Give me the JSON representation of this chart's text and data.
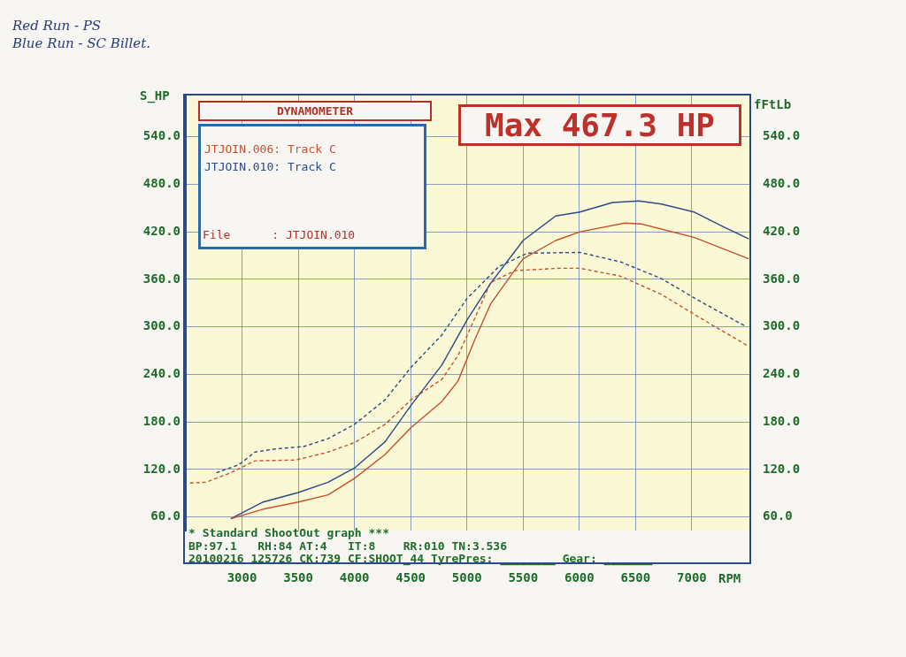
{
  "chart_data": {
    "type": "line",
    "title": "DYNAMOMETER",
    "xlabel": "RPM",
    "ylabel": "S_HP",
    "y2label": "fFtLb",
    "annotations": [
      "Red Run - PS",
      "Blue Run - SC Billet.",
      "Max 467.3 HP",
      "File      : JTJOIN.010",
      "* Standard ShootOut graph ***",
      "BP:97.1   RH:84 AT:4   IT:8    RR:010 TN:3.536",
      "20100216 125726 CK:739 CF:SHOOT_44 TyrePres: ________ Gear: _______"
    ],
    "xlim": [
      2500,
      7520
    ],
    "xticks": [
      3000,
      3500,
      4000,
      4500,
      5000,
      5500,
      6000,
      6500,
      7000
    ],
    "ylim": [
      43,
      592
    ],
    "yticks": [
      {
        "value": 60,
        "label": "60.0"
      },
      {
        "value": 120,
        "label": "120.0"
      },
      {
        "value": 180,
        "label": "180.0"
      },
      {
        "value": 240,
        "label": "240.0"
      },
      {
        "value": 300,
        "label": "300.0"
      },
      {
        "value": 360,
        "label": "360.0"
      },
      {
        "value": 420,
        "label": "420.0"
      },
      {
        "value": 480,
        "label": "480.0"
      },
      {
        "value": 540,
        "label": "540.0"
      }
    ],
    "y2lim": [
      43,
      592
    ],
    "y2ticks": [
      {
        "value": 60,
        "label": "60.0"
      },
      {
        "value": 120,
        "label": "120.0"
      },
      {
        "value": 180,
        "label": "180.0"
      },
      {
        "value": 240,
        "label": "240.0"
      },
      {
        "value": 300,
        "label": "300.0"
      },
      {
        "value": 360,
        "label": "360.0"
      },
      {
        "value": 420,
        "label": "420.0"
      },
      {
        "value": 480,
        "label": "480.0"
      },
      {
        "value": 540,
        "label": "540.0"
      }
    ],
    "grid": true,
    "legend": "top left",
    "marker": "none",
    "series": [
      {
        "name": "JTJOIN.006: Track C",
        "color": "#c8502a",
        "line_style": "solid",
        "x": [
          2900,
          3188,
          3500,
          3766,
          4001,
          4272,
          4503,
          4778,
          4922,
          5067,
          5211,
          5392,
          5500,
          5789,
          6006,
          6403,
          6548,
          7018,
          7506
        ],
        "values": [
          58,
          70,
          79,
          88,
          109,
          139,
          173,
          206,
          232,
          283,
          329,
          365,
          386,
          409,
          420,
          431,
          430,
          413,
          386
        ]
      },
      {
        "name": "JTJOIN.010: Track C",
        "color": "#2a4a8a",
        "line_style": "solid",
        "x": [
          2900,
          3188,
          3500,
          3766,
          4001,
          4272,
          4503,
          4778,
          5002,
          5211,
          5500,
          5789,
          6006,
          6295,
          6530,
          6729,
          7018,
          7271,
          7506
        ],
        "values": [
          58,
          79,
          91,
          104,
          122,
          155,
          201,
          252,
          309,
          355,
          409,
          440,
          445,
          457,
          459,
          455,
          445,
          427,
          411
        ]
      },
      {
        "color": "#c8502a",
        "line_style": "dashed",
        "x": [
          2537,
          2682,
          2900,
          3116,
          3477,
          3766,
          4001,
          4272,
          4503,
          4778,
          4922,
          5067,
          5211,
          5428,
          5825,
          6006,
          6367,
          6729,
          7090,
          7487
        ],
        "values": [
          103,
          104,
          116,
          131,
          132,
          142,
          154,
          177,
          208,
          234,
          264,
          310,
          356,
          371,
          374,
          374,
          364,
          341,
          310,
          277
        ]
      },
      {
        "color": "#2a4a8a",
        "line_style": "dashed",
        "x": [
          2772,
          2971,
          3116,
          3296,
          3549,
          3766,
          4001,
          4272,
          4503,
          4778,
          5002,
          5283,
          5536,
          6006,
          6367,
          6729,
          7090,
          7487
        ],
        "values": [
          116,
          126,
          142,
          146,
          149,
          159,
          177,
          208,
          249,
          290,
          336,
          376,
          393,
          394,
          382,
          361,
          331,
          300
        ]
      }
    ]
  }
}
